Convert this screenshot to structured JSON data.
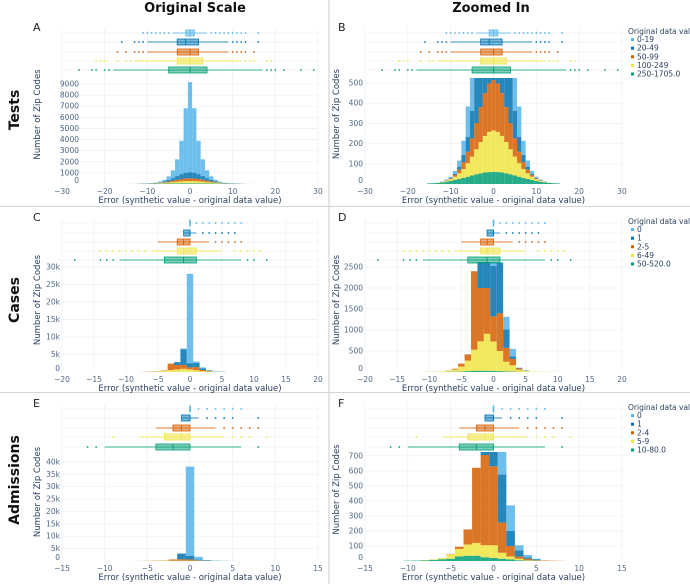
{
  "headers": {
    "left": "Original Scale",
    "right": "Zoomed In"
  },
  "row_labels": [
    "Tests",
    "Cases",
    "Admissions"
  ],
  "colors": [
    "#56B4E9",
    "#0072B2",
    "#D55E00",
    "#F0E442",
    "#009E73"
  ],
  "chart_data": {
    "type": "histogram-with-boxplots",
    "xlabel": "Error (synthetic value - original data value)",
    "ylabel": "Number of Zip Codes",
    "legend_title": "Original data value",
    "legend_placement": "right",
    "grid": true,
    "rows": [
      {
        "name": "Tests",
        "xlim": [
          -30,
          30
        ],
        "xticks": [
          -30,
          -20,
          -10,
          0,
          10,
          20,
          30
        ],
        "series": [
          "0-19",
          "20-49",
          "50-99",
          "100-249",
          "250-1705.0"
        ],
        "hist": {
          "bin_centers_start": -15,
          "bin_width": 1,
          "counts": [
            [
              0,
              0,
              0,
              1,
              3,
              6,
              14,
              30,
              70,
              150,
              330,
              700,
              1500,
              3000,
              5800,
              8100,
              5800,
              3000,
              1500,
              700,
              330,
              150,
              70,
              30,
              14,
              6,
              3,
              1,
              0,
              0,
              0
            ],
            [
              0,
              0,
              0,
              0,
              1,
              2,
              6,
              15,
              36,
              74,
              137,
              226,
              334,
              440,
              520,
              550,
              520,
              440,
              334,
              226,
              137,
              74,
              36,
              15,
              6,
              2,
              1,
              0,
              0,
              0,
              0
            ],
            [
              0,
              0,
              0,
              1,
              2,
              4,
              9,
              18,
              34,
              57,
              90,
              130,
              173,
              212,
              240,
              250,
              240,
              212,
              173,
              130,
              90,
              57,
              34,
              18,
              9,
              4,
              2,
              1,
              0,
              0,
              0
            ],
            [
              0,
              0,
              1,
              2,
              5,
              9,
              16,
              28,
              44,
              67,
              94,
              124,
              155,
              181,
              199,
              205,
              199,
              181,
              155,
              124,
              94,
              67,
              44,
              28,
              16,
              9,
              5,
              2,
              1,
              0,
              0
            ],
            [
              3,
              4,
              6,
              8,
              11,
              15,
              20,
              25,
              30,
              36,
              42,
              48,
              53,
              57,
              59,
              60,
              59,
              57,
              53,
              48,
              42,
              36,
              30,
              25,
              20,
              15,
              11,
              8,
              6,
              4,
              3
            ]
          ]
        },
        "boxes": [
          {
            "lo": -4,
            "q1": -1,
            "median": 0,
            "q3": 1,
            "hi": 4,
            "outliers": [
              -11,
              -10,
              -9,
              -8,
              -7,
              -6,
              -5,
              5,
              6,
              7,
              8,
              9,
              10,
              11,
              12,
              13,
              16
            ]
          },
          {
            "lo": -10,
            "q1": -3,
            "median": -1,
            "q3": 2,
            "hi": 9,
            "outliers": [
              -16,
              -13,
              -12,
              -11,
              10,
              11,
              12,
              13,
              16
            ]
          },
          {
            "lo": -10,
            "q1": -3,
            "median": 0,
            "q3": 2,
            "hi": 9,
            "outliers": [
              -17,
              -15,
              -13,
              -12,
              -11,
              10,
              11,
              12,
              13,
              15
            ]
          },
          {
            "lo": -13,
            "q1": -3,
            "median": 0,
            "q3": 3,
            "hi": 12,
            "outliers": [
              -22,
              -21,
              -20,
              -17,
              -15,
              -14,
              13,
              14,
              15,
              18,
              19
            ]
          },
          {
            "lo": -18,
            "q1": -5,
            "median": 0,
            "q3": 4,
            "hi": 17,
            "outliers": [
              -26,
              -23,
              -22,
              -20,
              -19,
              18,
              19,
              20,
              22,
              26,
              29
            ]
          }
        ],
        "panels": [
          {
            "letter": "A",
            "view": "Original Scale",
            "ylim": [
              0,
              9450
            ],
            "yticks": [
              0,
              1000,
              2000,
              3000,
              4000,
              5000,
              6000,
              7000,
              8000,
              9000
            ],
            "ytick_labels": [
              "0",
              "1000",
              "2000",
              "3000",
              "4000",
              "5000",
              "6000",
              "7000",
              "8000",
              "9000"
            ]
          },
          {
            "letter": "B",
            "view": "Zoomed In",
            "ylim": [
              0,
              525
            ],
            "yticks": [
              0,
              100,
              200,
              300,
              400,
              500
            ],
            "ytick_labels": [
              "0",
              "100",
              "200",
              "300",
              "400",
              "500"
            ]
          }
        ]
      },
      {
        "name": "Cases",
        "xlim": [
          -20,
          20
        ],
        "xticks": [
          -20,
          -15,
          -10,
          -5,
          0,
          5,
          10,
          15,
          20
        ],
        "series": [
          "0",
          "1",
          "2-5",
          "6-49",
          "50-520.0"
        ],
        "hist": {
          "bin_centers_start": -10,
          "bin_width": 1,
          "counts": [
            [
              0,
              0,
              0,
              0,
              0,
              0,
              0,
              0,
              50,
              200,
              25500,
              400,
              300,
              180,
              10,
              3,
              0,
              0,
              0,
              0,
              0
            ],
            [
              0,
              0,
              0,
              0,
              0,
              0,
              0,
              0,
              800,
              4500,
              1200,
              1200,
              440,
              60,
              10,
              2,
              0,
              0,
              0,
              0,
              0
            ],
            [
              0,
              0,
              0,
              5,
              20,
              70,
              150,
              1870,
              1270,
              1090,
              600,
              900,
              330,
              150,
              30,
              5,
              0,
              0,
              0,
              0,
              0
            ],
            [
              3,
              6,
              12,
              25,
              50,
              120,
              250,
              500,
              700,
              880,
              700,
              480,
              230,
              150,
              50,
              25,
              10,
              5,
              3,
              2,
              1
            ],
            [
              2,
              3,
              4,
              5,
              8,
              10,
              20,
              30,
              30,
              30,
              25,
              20,
              15,
              10,
              5,
              3,
              2,
              2,
              1,
              1,
              1
            ]
          ]
        },
        "boxes": [
          {
            "lo": 0,
            "q1": 0,
            "median": 0,
            "q3": 0,
            "hi": 0,
            "outliers": [
              1,
              2,
              3,
              4,
              5,
              6,
              7,
              8
            ]
          },
          {
            "lo": -1,
            "q1": -1,
            "median": 0,
            "q3": 0,
            "hi": 1,
            "outliers": [
              2,
              3,
              4,
              5,
              6,
              7
            ]
          },
          {
            "lo": -5,
            "q1": -2,
            "median": -1,
            "q3": 0,
            "hi": 3,
            "outliers": [
              4,
              5,
              6,
              7,
              8
            ]
          },
          {
            "lo": -6,
            "q1": -2,
            "median": -1,
            "q3": 1,
            "hi": 5,
            "outliers": [
              -14,
              -13,
              -12,
              -11,
              -10,
              -9,
              -8,
              -7,
              7,
              8,
              9,
              10,
              11
            ]
          },
          {
            "lo": -11,
            "q1": -4,
            "median": -1,
            "q3": 1,
            "hi": 8,
            "outliers": [
              -18,
              -14,
              -13,
              -12,
              9,
              10,
              12
            ]
          }
        ],
        "panels": [
          {
            "letter": "C",
            "view": "Original Scale",
            "ylim": [
              0,
              31400
            ],
            "yticks": [
              0,
              5000,
              10000,
              15000,
              20000,
              25000,
              30000
            ],
            "ytick_labels": [
              "0",
              "5k",
              "10k",
              "15k",
              "20k",
              "25k",
              "30k"
            ]
          },
          {
            "letter": "D",
            "view": "Zoomed In",
            "ylim": [
              0,
              2620
            ],
            "yticks": [
              0,
              500,
              1000,
              1500,
              2000,
              2500
            ],
            "ytick_labels": [
              "0",
              "500",
              "1000",
              "1500",
              "2000",
              "2500"
            ]
          }
        ]
      },
      {
        "name": "Admissions",
        "xlim": [
          -15,
          15
        ],
        "xticks": [
          -15,
          -10,
          -5,
          0,
          5,
          10,
          15
        ],
        "series": [
          "0",
          "1",
          "2-4",
          "5-9",
          "10-80.0"
        ],
        "hist": {
          "bin_centers_start": -10,
          "bin_width": 1,
          "counts": [
            [
              0,
              0,
              0,
              0,
              0,
              0,
              0,
              0,
              0,
              0,
              36000,
              1100,
              170,
              35,
              15,
              5,
              0,
              0,
              0
            ],
            [
              0,
              0,
              0,
              0,
              0,
              0,
              0,
              0,
              0,
              2300,
              1500,
              320,
              100,
              40,
              10,
              5,
              0,
              0,
              0
            ],
            [
              0,
              0,
              0,
              0,
              0,
              2,
              15,
              100,
              500,
              600,
              525,
              200,
              70,
              15,
              10,
              3,
              3,
              2,
              1
            ],
            [
              0,
              0,
              1,
              3,
              8,
              30,
              50,
              75,
              85,
              80,
              85,
              40,
              20,
              10,
              3,
              1,
              0,
              0,
              0
            ],
            [
              2,
              3,
              5,
              8,
              12,
              15,
              30,
              35,
              35,
              25,
              20,
              15,
              10,
              5,
              2,
              1,
              0,
              0,
              0
            ]
          ]
        },
        "boxes": [
          {
            "lo": 0,
            "q1": 0,
            "median": 0,
            "q3": 0,
            "hi": 0,
            "outliers": [
              1,
              2,
              3,
              4,
              5,
              6
            ]
          },
          {
            "lo": -1,
            "q1": -1,
            "median": 0,
            "q3": 0,
            "hi": 1,
            "outliers": [
              2,
              3,
              4,
              5,
              8
            ]
          },
          {
            "lo": -4,
            "q1": -2,
            "median": -1,
            "q3": 0,
            "hi": 3,
            "outliers": [
              4,
              5,
              6,
              7,
              8
            ]
          },
          {
            "lo": -6,
            "q1": -3,
            "median": -1,
            "q3": 0,
            "hi": 4,
            "outliers": [
              -9,
              5,
              6,
              7,
              9
            ]
          },
          {
            "lo": -10,
            "q1": -4,
            "median": -2,
            "q3": 0,
            "hi": 6,
            "outliers": [
              -12,
              -11,
              8
            ]
          }
        ],
        "panels": [
          {
            "letter": "E",
            "view": "Original Scale",
            "ylim": [
              0,
              42000
            ],
            "yticks": [
              0,
              5000,
              10000,
              15000,
              20000,
              25000,
              30000,
              35000,
              40000
            ],
            "ytick_labels": [
              "0",
              "5k",
              "10k",
              "15k",
              "20k",
              "25k",
              "30k",
              "35k",
              "40k"
            ]
          },
          {
            "letter": "F",
            "view": "Zoomed In",
            "ylim": [
              0,
              725
            ],
            "yticks": [
              0,
              100,
              200,
              300,
              400,
              500,
              600,
              700
            ],
            "ytick_labels": [
              "0",
              "100",
              "200",
              "300",
              "400",
              "500",
              "600",
              "700"
            ]
          }
        ]
      }
    ]
  }
}
